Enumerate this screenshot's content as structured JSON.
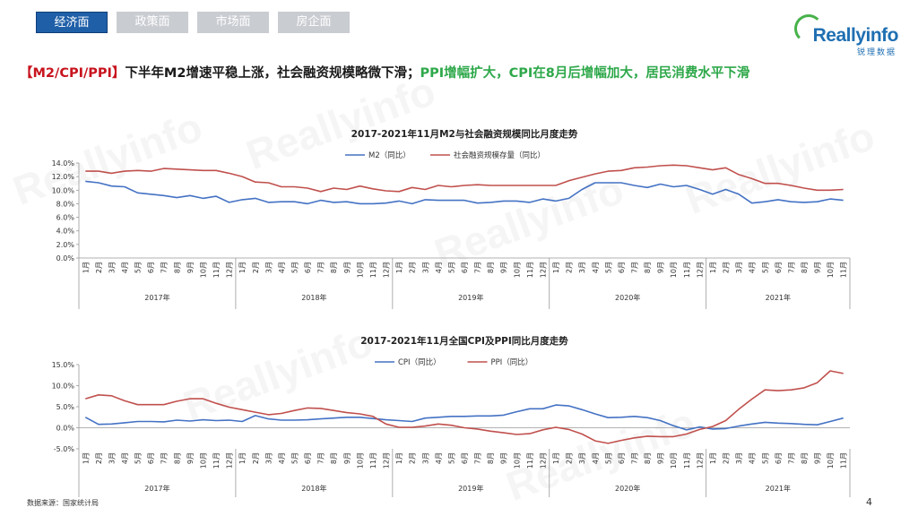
{
  "tabs": [
    {
      "label": "经济面",
      "active": true
    },
    {
      "label": "政策面",
      "active": false
    },
    {
      "label": "市场面",
      "active": false
    },
    {
      "label": "房企面",
      "active": false
    }
  ],
  "logo": {
    "text": "Reallyinfo",
    "sub": "锐理数据"
  },
  "headline": {
    "tag": "【M2/CPI/PPI】",
    "part1": "下半年M2增速平稳上涨，社会融资规模略微下滑；",
    "part2": "PPI增幅扩大，CPI在8月后增幅加大，居民消费水平下滑"
  },
  "watermark": "Reallyinfo",
  "colors": {
    "blue": "#4472c4",
    "red": "#c0504d",
    "accent": "#1f5fa8",
    "green": "#2ea84a"
  },
  "chart_data": [
    {
      "type": "line",
      "title": "2017-2021年11月M2与社会融资规模同比月度走势",
      "ylim": [
        0,
        14
      ],
      "yticks": [
        0,
        2,
        4,
        6,
        8,
        10,
        12,
        14
      ],
      "ytick_labels": [
        "0.0%",
        "2.0%",
        "4.0%",
        "6.0%",
        "8.0%",
        "10.0%",
        "12.0%",
        "14.0%"
      ],
      "legend_position": "top",
      "grid": false,
      "month_labels": [
        "1月",
        "2月",
        "3月",
        "4月",
        "5月",
        "6月",
        "7月",
        "8月",
        "9月",
        "10月",
        "11月",
        "12月"
      ],
      "year_groups": [
        {
          "label": "2017年",
          "months": 12
        },
        {
          "label": "2018年",
          "months": 12
        },
        {
          "label": "2019年",
          "months": 12
        },
        {
          "label": "2020年",
          "months": 12
        },
        {
          "label": "2021年",
          "months": 11
        }
      ],
      "series": [
        {
          "name": "M2（同比）",
          "color": "#4472c4",
          "values": [
            11.3,
            11.1,
            10.6,
            10.5,
            9.6,
            9.4,
            9.2,
            8.9,
            9.2,
            8.8,
            9.1,
            8.2,
            8.6,
            8.8,
            8.2,
            8.3,
            8.3,
            8.0,
            8.5,
            8.2,
            8.3,
            8.0,
            8.0,
            8.1,
            8.4,
            8.0,
            8.6,
            8.5,
            8.5,
            8.5,
            8.1,
            8.2,
            8.4,
            8.4,
            8.2,
            8.7,
            8.4,
            8.8,
            10.1,
            11.1,
            11.1,
            11.1,
            10.7,
            10.4,
            10.9,
            10.5,
            10.7,
            10.1,
            9.4,
            10.1,
            9.4,
            8.1,
            8.3,
            8.6,
            8.3,
            8.2,
            8.3,
            8.7,
            8.5
          ]
        },
        {
          "name": "社会融资规模存量（同比）",
          "color": "#c0504d",
          "values": [
            12.8,
            12.8,
            12.5,
            12.8,
            12.9,
            12.8,
            13.2,
            13.1,
            13.0,
            12.9,
            12.9,
            12.5,
            12.0,
            11.2,
            11.1,
            10.5,
            10.5,
            10.3,
            9.8,
            10.3,
            10.1,
            10.6,
            10.2,
            9.9,
            9.8,
            10.4,
            10.1,
            10.7,
            10.5,
            10.7,
            10.8,
            10.7,
            10.7,
            10.7,
            10.7,
            10.7,
            10.7,
            11.4,
            11.9,
            12.4,
            12.8,
            12.9,
            13.3,
            13.4,
            13.6,
            13.7,
            13.6,
            13.3,
            13.0,
            13.3,
            12.3,
            11.7,
            11.0,
            11.0,
            10.7,
            10.3,
            10.0,
            10.0,
            10.1
          ]
        }
      ]
    },
    {
      "type": "line",
      "title": "2017-2021年11月全国CPI及PPI同比月度走势",
      "ylim": [
        -5,
        15
      ],
      "yticks": [
        -5,
        0,
        5,
        10,
        15
      ],
      "ytick_labels": [
        "-5.0%",
        "0.0%",
        "5.0%",
        "10.0%",
        "15.0%"
      ],
      "legend_position": "top",
      "grid": false,
      "month_labels": [
        "1月",
        "2月",
        "3月",
        "4月",
        "5月",
        "6月",
        "7月",
        "8月",
        "9月",
        "10月",
        "11月",
        "12月"
      ],
      "year_groups": [
        {
          "label": "2017年",
          "months": 12
        },
        {
          "label": "2018年",
          "months": 12
        },
        {
          "label": "2019年",
          "months": 12
        },
        {
          "label": "2020年",
          "months": 12
        },
        {
          "label": "2021年",
          "months": 11
        }
      ],
      "series": [
        {
          "name": "CPI（同比）",
          "color": "#4472c4",
          "values": [
            2.5,
            0.8,
            0.9,
            1.2,
            1.5,
            1.5,
            1.4,
            1.8,
            1.6,
            1.9,
            1.7,
            1.8,
            1.5,
            2.9,
            2.1,
            1.8,
            1.8,
            1.9,
            2.1,
            2.3,
            2.5,
            2.5,
            2.2,
            1.9,
            1.7,
            1.5,
            2.3,
            2.5,
            2.7,
            2.7,
            2.8,
            2.8,
            3.0,
            3.8,
            4.5,
            4.5,
            5.4,
            5.2,
            4.3,
            3.3,
            2.4,
            2.5,
            2.7,
            2.4,
            1.7,
            0.5,
            -0.5,
            0.2,
            -0.3,
            -0.2,
            0.4,
            0.9,
            1.3,
            1.1,
            1.0,
            0.8,
            0.7,
            1.5,
            2.3
          ]
        },
        {
          "name": "PPI（同比）",
          "color": "#c0504d",
          "values": [
            6.9,
            7.8,
            7.6,
            6.4,
            5.5,
            5.5,
            5.5,
            6.3,
            6.9,
            6.9,
            5.8,
            4.9,
            4.3,
            3.7,
            3.1,
            3.4,
            4.1,
            4.7,
            4.6,
            4.1,
            3.6,
            3.3,
            2.7,
            0.9,
            0.1,
            0.1,
            0.4,
            0.9,
            0.6,
            0.0,
            -0.3,
            -0.8,
            -1.2,
            -1.6,
            -1.4,
            -0.5,
            0.1,
            -0.4,
            -1.5,
            -3.1,
            -3.7,
            -3.0,
            -2.4,
            -2.0,
            -2.1,
            -2.1,
            -1.5,
            -0.4,
            0.3,
            1.7,
            4.4,
            6.8,
            9.0,
            8.8,
            9.0,
            9.5,
            10.7,
            13.5,
            12.9
          ]
        }
      ]
    }
  ],
  "footer": {
    "source": "数据来源：国家统计局",
    "page": "4"
  }
}
